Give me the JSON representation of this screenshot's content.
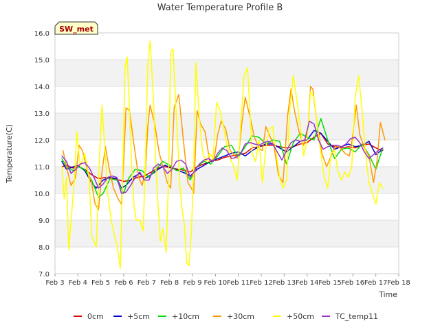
{
  "chart_data": {
    "type": "line",
    "title": "Water Temperature Profile B",
    "xlabel": "Time",
    "ylabel": "Temperature(C)",
    "site_label": "SW_met",
    "xlim": [
      3,
      18
    ],
    "ylim": [
      7.0,
      16.0
    ],
    "x_ticks": [
      3,
      4,
      5,
      6,
      7,
      8,
      9,
      10,
      11,
      12,
      13,
      14,
      15,
      16,
      17,
      18
    ],
    "x_tick_labels": [
      "Feb 3",
      "Feb 4",
      "Feb 5",
      "Feb 6",
      "Feb 7",
      "Feb 8",
      "Feb 9",
      "Feb 10",
      "Feb 11",
      "Feb 12",
      "Feb 13",
      "Feb 14",
      "Feb 15",
      "Feb 16",
      "Feb 17",
      "Feb 18"
    ],
    "y_ticks": [
      7.0,
      8.0,
      9.0,
      10.0,
      11.0,
      12.0,
      13.0,
      14.0,
      15.0,
      16.0
    ],
    "y_tick_labels": [
      "7.0",
      "8.0",
      "9.0",
      "10.0",
      "11.0",
      "12.0",
      "13.0",
      "14.0",
      "15.0",
      "16.0"
    ],
    "legend_position": "bottom",
    "x_unit": "day of February",
    "series": [
      {
        "name": "0cm",
        "color": "#dd0000",
        "x": [
          3.3,
          3.5,
          3.8,
          4.0,
          4.3,
          4.6,
          4.9,
          5.2,
          5.5,
          5.8,
          6.0,
          6.3,
          6.6,
          6.9,
          7.2,
          7.5,
          7.8,
          8.1,
          8.4,
          8.7,
          8.9,
          9.2,
          9.5,
          9.8,
          10.1,
          10.4,
          10.7,
          11.0,
          11.3,
          11.6,
          11.9,
          12.2,
          12.5,
          12.8,
          13.1,
          13.4,
          13.7,
          14.0,
          14.3,
          14.6,
          14.9,
          15.2,
          15.5,
          15.8,
          16.1,
          16.4,
          16.7,
          17.0,
          17.3
        ],
        "y": [
          11.0,
          11.05,
          10.95,
          11.0,
          10.9,
          10.7,
          10.55,
          10.6,
          10.55,
          10.5,
          10.45,
          10.5,
          10.6,
          10.65,
          10.8,
          10.95,
          11.0,
          10.95,
          10.9,
          10.85,
          10.8,
          11.0,
          11.1,
          11.2,
          11.25,
          11.35,
          11.4,
          11.45,
          11.5,
          11.7,
          11.75,
          11.8,
          11.8,
          11.75,
          11.7,
          11.75,
          11.85,
          11.9,
          12.1,
          12.25,
          11.85,
          11.75,
          11.7,
          11.75,
          11.7,
          11.8,
          11.85,
          11.7,
          11.6
        ]
      },
      {
        "name": "+5cm",
        "color": "#0000cc",
        "x": [
          3.3,
          3.5,
          3.8,
          4.0,
          4.3,
          4.6,
          4.8,
          5.1,
          5.4,
          5.7,
          5.9,
          6.1,
          6.4,
          6.7,
          6.9,
          7.2,
          7.5,
          7.8,
          8.1,
          8.4,
          8.7,
          8.9,
          9.2,
          9.5,
          9.8,
          10.1,
          10.4,
          10.7,
          11.0,
          11.3,
          11.6,
          11.9,
          12.2,
          12.5,
          12.8,
          13.1,
          13.4,
          13.7,
          14.0,
          14.3,
          14.6,
          14.9,
          15.2,
          15.5,
          15.8,
          16.1,
          16.4,
          16.7,
          17.0,
          17.3
        ],
        "y": [
          11.2,
          10.9,
          11.0,
          11.05,
          10.85,
          10.4,
          10.2,
          10.5,
          10.6,
          10.55,
          10.2,
          10.3,
          10.6,
          10.75,
          10.55,
          10.7,
          10.9,
          11.05,
          10.95,
          10.85,
          10.75,
          10.65,
          10.9,
          11.05,
          11.2,
          11.3,
          11.4,
          11.5,
          11.55,
          11.4,
          11.6,
          11.75,
          11.85,
          11.85,
          11.7,
          11.55,
          11.75,
          11.95,
          12.0,
          12.35,
          12.25,
          11.95,
          11.65,
          11.75,
          11.85,
          11.75,
          11.8,
          11.95,
          11.45,
          11.65
        ]
      },
      {
        "name": "+10cm",
        "color": "#00dd00",
        "x": [
          3.3,
          3.5,
          3.8,
          4.0,
          4.3,
          4.6,
          4.9,
          5.1,
          5.4,
          5.7,
          6.0,
          6.2,
          6.5,
          6.8,
          7.1,
          7.4,
          7.7,
          8.0,
          8.3,
          8.6,
          8.9,
          9.2,
          9.5,
          9.8,
          10.1,
          10.4,
          10.7,
          11.0,
          11.3,
          11.6,
          11.9,
          12.2,
          12.5,
          12.8,
          13.1,
          13.4,
          13.7,
          14.0,
          14.3,
          14.6,
          14.9,
          15.2,
          15.5,
          15.8,
          16.1,
          16.4,
          16.7,
          17.0,
          17.3
        ],
        "y": [
          11.3,
          11.0,
          10.85,
          11.0,
          10.9,
          10.5,
          9.85,
          10.0,
          10.55,
          10.5,
          10.0,
          10.55,
          10.9,
          10.85,
          10.6,
          10.9,
          11.2,
          11.05,
          10.85,
          10.95,
          10.5,
          11.0,
          11.2,
          11.1,
          11.4,
          11.75,
          11.8,
          11.35,
          11.75,
          12.15,
          12.1,
          11.85,
          12.0,
          11.95,
          11.1,
          11.9,
          12.25,
          12.1,
          12.0,
          12.8,
          12.0,
          11.3,
          11.65,
          11.7,
          11.55,
          11.85,
          11.45,
          10.9,
          11.7
        ]
      },
      {
        "name": "+30cm",
        "color": "#ff9900",
        "x": [
          3.35,
          3.5,
          3.7,
          3.9,
          4.05,
          4.2,
          4.4,
          4.6,
          4.75,
          4.9,
          5.05,
          5.2,
          5.35,
          5.55,
          5.75,
          5.9,
          6.0,
          6.1,
          6.25,
          6.45,
          6.65,
          6.8,
          6.95,
          7.05,
          7.15,
          7.35,
          7.55,
          7.75,
          7.9,
          8.05,
          8.2,
          8.4,
          8.6,
          8.8,
          8.95,
          9.05,
          9.2,
          9.35,
          9.55,
          9.75,
          9.95,
          10.1,
          10.25,
          10.45,
          10.65,
          10.85,
          11.0,
          11.15,
          11.3,
          11.5,
          11.7,
          11.9,
          12.05,
          12.2,
          12.35,
          12.55,
          12.75,
          12.95,
          13.15,
          13.3,
          13.45,
          13.65,
          13.85,
          14.05,
          14.15,
          14.25,
          14.45,
          14.65,
          14.85,
          15.05,
          15.25,
          15.45,
          15.65,
          15.85,
          16.0,
          16.15,
          16.3,
          16.5,
          16.7,
          16.9,
          17.05,
          17.2,
          17.4
        ],
        "y": [
          11.6,
          11.0,
          10.3,
          10.6,
          11.8,
          11.6,
          10.9,
          10.4,
          9.6,
          9.4,
          10.8,
          11.75,
          11.0,
          10.2,
          9.8,
          9.6,
          11.2,
          13.2,
          13.1,
          11.8,
          10.6,
          10.3,
          10.9,
          12.5,
          13.3,
          12.6,
          11.5,
          10.9,
          10.4,
          10.2,
          13.2,
          13.7,
          12.0,
          10.4,
          10.2,
          10.0,
          13.1,
          12.6,
          12.3,
          11.2,
          11.3,
          12.2,
          12.7,
          12.4,
          11.6,
          11.4,
          11.3,
          12.6,
          13.6,
          12.9,
          12.1,
          11.7,
          11.6,
          12.5,
          12.2,
          11.8,
          10.7,
          10.4,
          12.9,
          13.9,
          13.1,
          12.3,
          11.8,
          12.5,
          14.0,
          13.9,
          12.5,
          11.5,
          11.0,
          11.4,
          11.8,
          11.7,
          11.5,
          11.4,
          12.2,
          13.3,
          12.2,
          11.7,
          11.4,
          10.4,
          11.2,
          12.65,
          12.0
        ]
      },
      {
        "name": "+50cm",
        "color": "#ffff00",
        "x": [
          3.3,
          3.4,
          3.5,
          3.6,
          3.75,
          3.85,
          3.95,
          4.1,
          4.3,
          4.5,
          4.6,
          4.7,
          4.8,
          4.95,
          5.05,
          5.15,
          5.3,
          5.45,
          5.6,
          5.7,
          5.85,
          5.95,
          6.05,
          6.15,
          6.25,
          6.35,
          6.45,
          6.55,
          6.7,
          6.85,
          6.95,
          7.05,
          7.15,
          7.3,
          7.4,
          7.5,
          7.6,
          7.7,
          7.85,
          7.95,
          8.05,
          8.15,
          8.3,
          8.45,
          8.55,
          8.65,
          8.75,
          8.85,
          8.95,
          9.05,
          9.15,
          9.3,
          9.45,
          9.6,
          9.75,
          9.9,
          10.05,
          10.2,
          10.35,
          10.5,
          10.65,
          10.8,
          10.95,
          11.1,
          11.25,
          11.4,
          11.5,
          11.6,
          11.75,
          11.9,
          12.05,
          12.2,
          12.35,
          12.5,
          12.65,
          12.8,
          12.95,
          13.1,
          13.25,
          13.4,
          13.55,
          13.7,
          13.85,
          14.0,
          14.15,
          14.3,
          14.45,
          14.6,
          14.75,
          14.9,
          15.05,
          15.2,
          15.35,
          15.5,
          15.65,
          15.8,
          15.95,
          16.1,
          16.25,
          16.4,
          16.55,
          16.7,
          16.85,
          17.0,
          17.15,
          17.3
        ],
        "y": [
          11.0,
          9.8,
          10.6,
          7.9,
          9.5,
          10.5,
          12.3,
          11.0,
          11.5,
          10.5,
          8.4,
          8.2,
          8.0,
          11.5,
          13.3,
          12.0,
          10.0,
          9.0,
          8.4,
          8.1,
          7.2,
          10.5,
          14.7,
          15.1,
          13.2,
          11.0,
          9.5,
          9.0,
          9.0,
          8.6,
          11.4,
          14.8,
          15.7,
          13.5,
          11.0,
          9.5,
          8.2,
          8.7,
          7.8,
          10.4,
          15.3,
          15.4,
          12.8,
          10.3,
          9.4,
          8.8,
          7.4,
          7.3,
          8.5,
          11.0,
          14.9,
          12.8,
          11.5,
          11.2,
          11.5,
          11.3,
          13.4,
          13.1,
          12.5,
          11.8,
          11.3,
          11.0,
          10.5,
          12.5,
          14.4,
          14.7,
          13.2,
          11.5,
          11.2,
          12.0,
          10.4,
          11.7,
          12.4,
          12.5,
          11.5,
          10.6,
          10.2,
          10.5,
          13.2,
          14.4,
          13.5,
          12.5,
          11.4,
          12.0,
          13.8,
          13.6,
          12.5,
          11.5,
          10.6,
          10.2,
          11.5,
          11.6,
          10.8,
          10.5,
          10.8,
          10.6,
          11.0,
          13.6,
          14.4,
          13.1,
          11.5,
          10.4,
          10.0,
          9.6,
          10.4,
          10.2
        ]
      },
      {
        "name": "TC_temp11",
        "color": "#9933cc",
        "x": [
          3.3,
          3.5,
          3.7,
          3.9,
          4.1,
          4.3,
          4.5,
          4.7,
          4.9,
          5.1,
          5.3,
          5.5,
          5.7,
          5.9,
          6.1,
          6.3,
          6.5,
          6.7,
          6.9,
          7.1,
          7.3,
          7.5,
          7.7,
          7.9,
          8.1,
          8.3,
          8.5,
          8.7,
          8.9,
          9.1,
          9.3,
          9.5,
          9.7,
          9.9,
          10.1,
          10.3,
          10.5,
          10.7,
          10.9,
          11.1,
          11.3,
          11.5,
          11.7,
          11.9,
          12.1,
          12.3,
          12.5,
          12.7,
          12.9,
          13.1,
          13.3,
          13.5,
          13.7,
          13.9,
          14.1,
          14.3,
          14.5,
          14.7,
          14.9,
          15.1,
          15.3,
          15.5,
          15.7,
          15.9,
          16.1,
          16.3,
          16.5,
          16.7,
          16.9,
          17.1,
          17.3
        ],
        "y": [
          11.4,
          11.2,
          10.75,
          10.9,
          11.1,
          11.15,
          10.95,
          10.6,
          10.2,
          10.35,
          10.6,
          10.65,
          10.6,
          10.0,
          10.05,
          10.3,
          10.6,
          10.8,
          10.5,
          10.5,
          10.95,
          11.1,
          11.0,
          10.75,
          10.9,
          11.2,
          11.25,
          11.1,
          10.6,
          10.85,
          11.1,
          11.25,
          11.3,
          11.2,
          11.5,
          11.7,
          11.6,
          11.3,
          11.35,
          11.5,
          11.85,
          11.9,
          11.85,
          11.8,
          11.9,
          11.95,
          11.85,
          11.55,
          11.25,
          11.6,
          11.9,
          12.0,
          11.95,
          12.0,
          12.7,
          12.6,
          12.0,
          11.65,
          11.75,
          11.8,
          11.8,
          11.75,
          11.85,
          12.05,
          12.1,
          11.9,
          11.55,
          11.3,
          11.45,
          11.6,
          11.7
        ]
      }
    ]
  }
}
